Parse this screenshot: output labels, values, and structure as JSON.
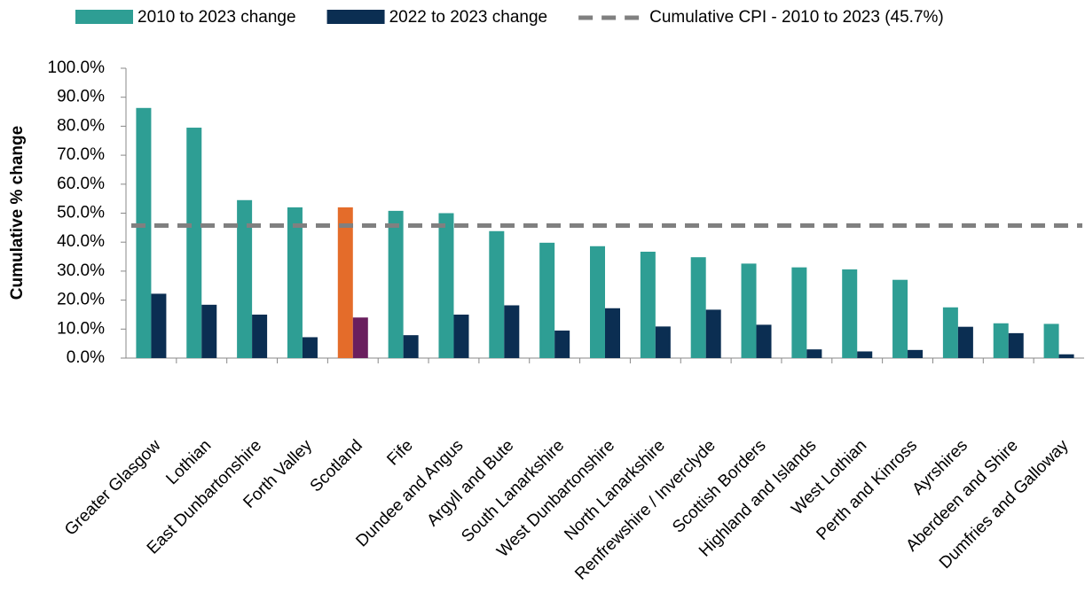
{
  "chart_data": {
    "type": "bar",
    "y_label": "Cumulative % change",
    "categories": [
      "Greater Glasgow",
      "Lothian",
      "East Dunbartonshire",
      "Forth Valley",
      "Scotland",
      "Fife",
      "Dundee and Angus",
      "Argyll and Bute",
      "South Lanarkshire",
      "West Dunbartonshire",
      "North Lanarkshire",
      "Renfrewshire / Inverclyde",
      "Scottish Borders",
      "Highland and Islands",
      "West Lothian",
      "Perth and Kinross",
      "Ayrshires",
      "Aberdeen and Shire",
      "Dumfries and Galloway"
    ],
    "series": [
      {
        "name": "2010 to 2023 change",
        "color": "#2e9e94",
        "colors": [
          "#2e9e94",
          "#2e9e94",
          "#2e9e94",
          "#2e9e94",
          "#e46c2a",
          "#2e9e94",
          "#2e9e94",
          "#2e9e94",
          "#2e9e94",
          "#2e9e94",
          "#2e9e94",
          "#2e9e94",
          "#2e9e94",
          "#2e9e94",
          "#2e9e94",
          "#2e9e94",
          "#2e9e94",
          "#2e9e94",
          "#2e9e94"
        ],
        "values": [
          86.3,
          79.5,
          54.5,
          52.0,
          52.0,
          50.8,
          50.0,
          43.8,
          39.8,
          38.6,
          36.7,
          34.8,
          32.6,
          31.3,
          30.6,
          27.0,
          17.5,
          12.0,
          11.8
        ]
      },
      {
        "name": "2022 to 2023 change",
        "color": "#0b2e52",
        "colors": [
          "#0b2e52",
          "#0b2e52",
          "#0b2e52",
          "#0b2e52",
          "#6a1f5e",
          "#0b2e52",
          "#0b2e52",
          "#0b2e52",
          "#0b2e52",
          "#0b2e52",
          "#0b2e52",
          "#0b2e52",
          "#0b2e52",
          "#0b2e52",
          "#0b2e52",
          "#0b2e52",
          "#0b2e52",
          "#0b2e52",
          "#0b2e52"
        ],
        "values": [
          22.2,
          18.4,
          15.0,
          7.2,
          14.0,
          7.9,
          15.0,
          18.2,
          9.5,
          17.2,
          10.9,
          16.7,
          11.5,
          3.0,
          2.3,
          2.8,
          10.8,
          8.6,
          1.3
        ]
      }
    ],
    "reference_line": {
      "name": "Cumulative CPI - 2010 to 2023 (45.7%)",
      "value": 45.7,
      "color": "#808080",
      "style": "dashed"
    },
    "ylim": [
      0,
      100
    ],
    "yticks": [
      {
        "value": 0,
        "label": "0.0%"
      },
      {
        "value": 10,
        "label": "10.0%"
      },
      {
        "value": 20,
        "label": "20.0%"
      },
      {
        "value": 30,
        "label": "30.0%"
      },
      {
        "value": 40,
        "label": "40.0%"
      },
      {
        "value": 50,
        "label": "50.0%"
      },
      {
        "value": 60,
        "label": "60.0%"
      },
      {
        "value": 70,
        "label": "70.0%"
      },
      {
        "value": 80,
        "label": "80.0%"
      },
      {
        "value": 90,
        "label": "90.0%"
      },
      {
        "value": 100,
        "label": "100.0%"
      }
    ],
    "legend": "top"
  }
}
